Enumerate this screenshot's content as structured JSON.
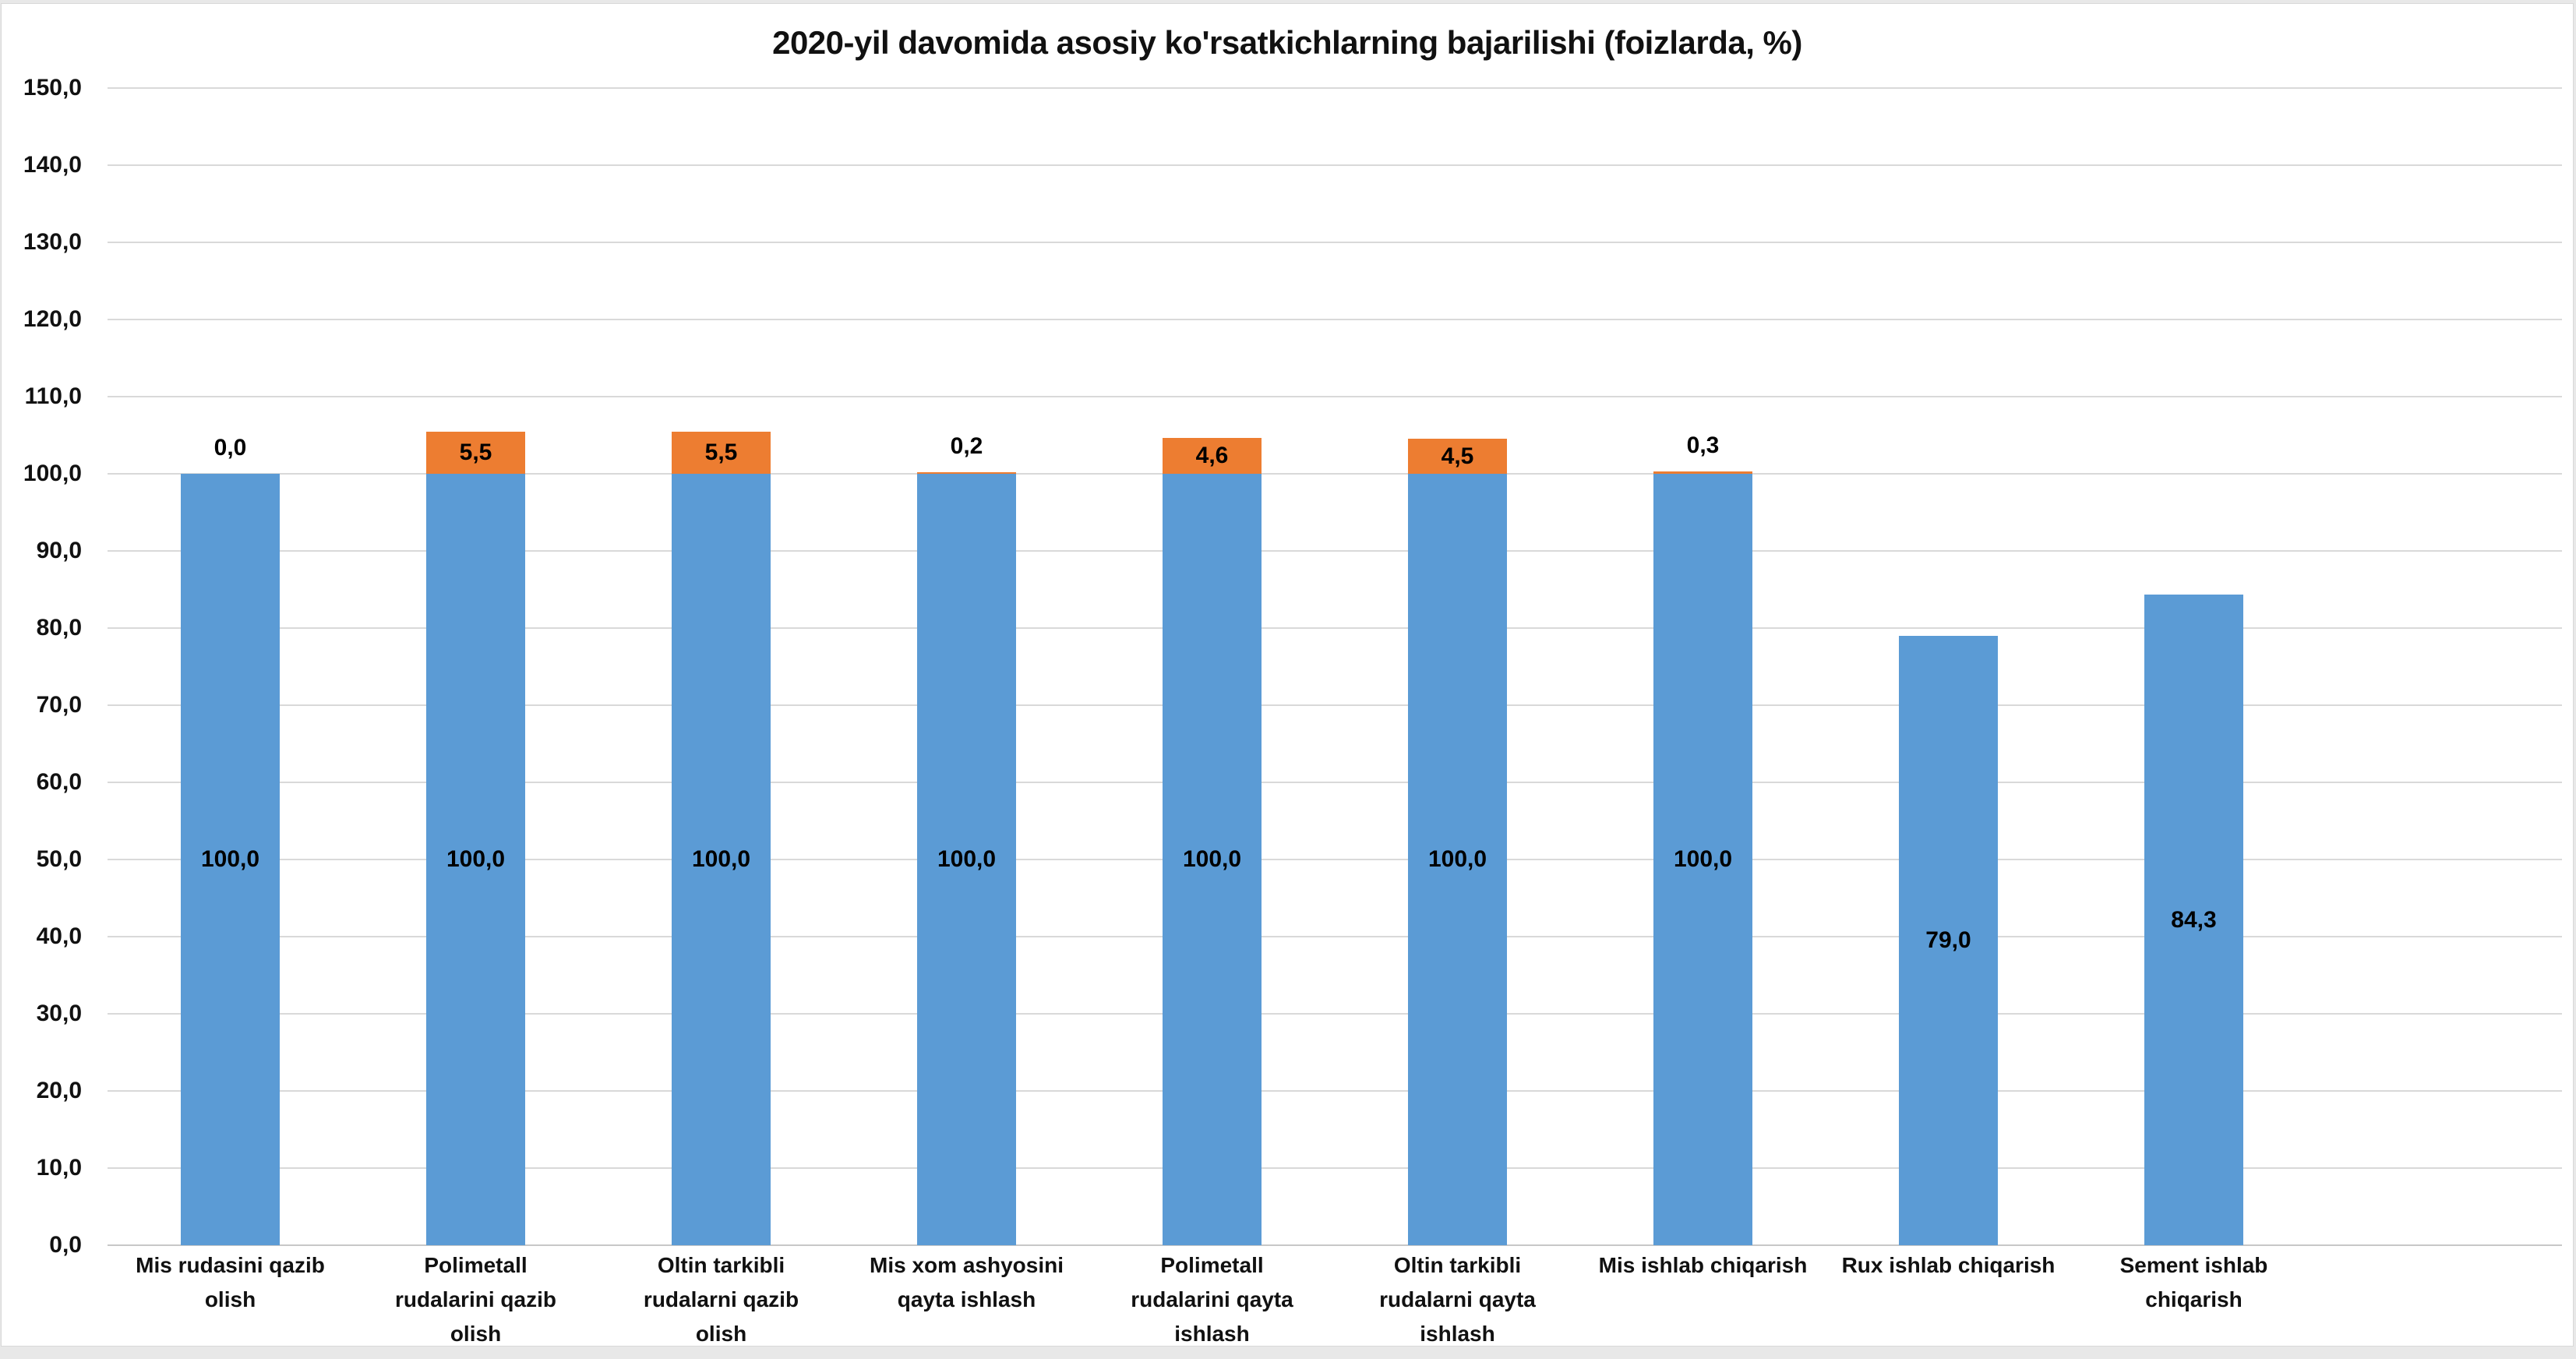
{
  "chart_data": {
    "type": "bar",
    "stacked": true,
    "title": "2020-yil davomida asosiy ko'rsatkichlarning bajarilishi (foizlarda, %)",
    "categories": [
      [
        "Mis rudasini qazib",
        "olish"
      ],
      [
        "Polimetall",
        "rudalarini qazib",
        "olish"
      ],
      [
        "Oltin tarkibli",
        "rudalarni qazib",
        "olish"
      ],
      [
        "Mis xom ashyosini",
        "qayta ishlash"
      ],
      [
        "Polimetall",
        "rudalarini qayta",
        "ishlash"
      ],
      [
        "Oltin tarkibli",
        "rudalarni qayta",
        "ishlash"
      ],
      [
        "Mis ishlab chiqarish"
      ],
      [
        "Rux ishlab chiqarish"
      ],
      [
        "Sement ishlab",
        "chiqarish"
      ]
    ],
    "series": [
      {
        "role": "base",
        "color": "#5B9BD5",
        "values": [
          100.0,
          100.0,
          100.0,
          100.0,
          100.0,
          100.0,
          100.0,
          79.0,
          84.3
        ],
        "labels": [
          "100,0",
          "100,0",
          "100,0",
          "100,0",
          "100,0",
          "100,0",
          "100,0",
          "79,0",
          "84,3"
        ]
      },
      {
        "role": "overflow",
        "color": "#ED7D31",
        "values": [
          0.0,
          5.5,
          5.5,
          0.2,
          4.6,
          4.5,
          0.3,
          null,
          null
        ],
        "labels": [
          "0,0",
          "5,5",
          "5,5",
          "0,2",
          "4,6",
          "4,5",
          "0,3",
          null,
          null
        ]
      }
    ],
    "ylim": [
      0,
      150
    ],
    "ytick_step": 10,
    "ytick_labels": [
      "0,0",
      "10,0",
      "20,0",
      "30,0",
      "40,0",
      "50,0",
      "60,0",
      "70,0",
      "80,0",
      "90,0",
      "100,0",
      "110,0",
      "120,0",
      "130,0",
      "140,0",
      "150,0"
    ],
    "grid": true,
    "legend": "none"
  },
  "colors": {
    "bar_blue": "#5B9BD5",
    "bar_orange": "#ED7D31",
    "gridline": "#D9D9D9",
    "axis_line": "#C8C8C8",
    "text": "#111111",
    "frame_border": "#D8D8D8",
    "page_bg": "#E8E8E8"
  }
}
